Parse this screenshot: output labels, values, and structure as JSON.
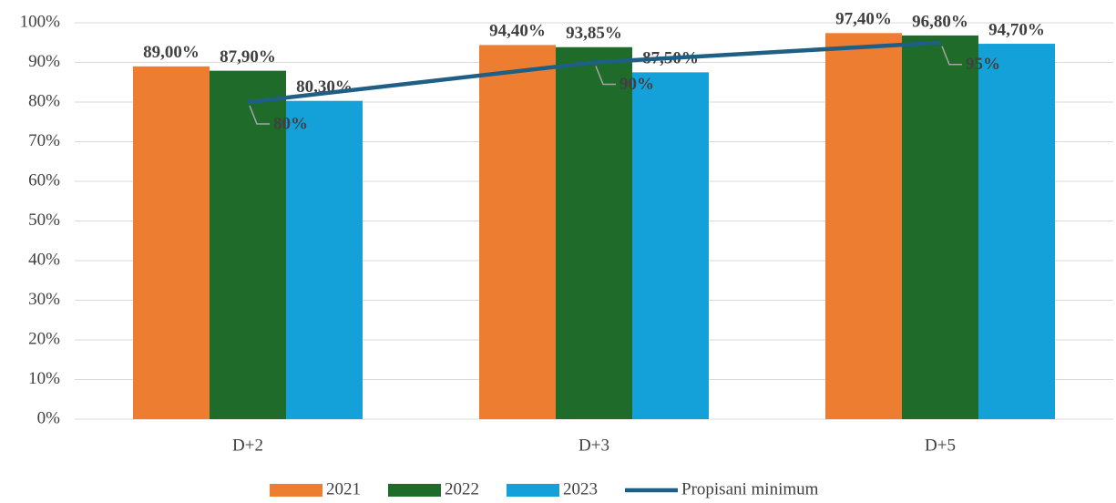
{
  "chart_data": {
    "type": "bar",
    "categories": [
      "D+2",
      "D+3",
      "D+5"
    ],
    "series": [
      {
        "name": "2021",
        "color": "#ed7d31",
        "label_color": "#c55a11",
        "values": [
          89.0,
          94.4,
          97.4
        ],
        "value_labels": [
          "89,00%",
          "94,40%",
          "97,40%"
        ]
      },
      {
        "name": "2022",
        "color": "#1e6b2a",
        "label_color": "#a6a6a6",
        "values": [
          87.9,
          93.85,
          96.8
        ],
        "value_labels": [
          "87,90%",
          "93,85%",
          "96,80%"
        ]
      },
      {
        "name": "2023",
        "color": "#14a0d9",
        "label_color": "#2e8bc0",
        "values": [
          80.3,
          87.5,
          94.7
        ],
        "value_labels": [
          "80,30%",
          "87,50%",
          "94,70%"
        ]
      },
      {
        "name": "Propisani minimum",
        "type": "line",
        "color": "#1f5f85",
        "label_color": "#1f4e79",
        "values": [
          80,
          90,
          95
        ],
        "value_labels": [
          "80%",
          "90%",
          "95%"
        ]
      }
    ],
    "ylim": [
      0,
      100
    ],
    "yticks": [
      {
        "value": 0,
        "label": "0%"
      },
      {
        "value": 10,
        "label": "10%"
      },
      {
        "value": 20,
        "label": "20%"
      },
      {
        "value": 30,
        "label": "30%"
      },
      {
        "value": 40,
        "label": "40%"
      },
      {
        "value": 50,
        "label": "50%"
      },
      {
        "value": 60,
        "label": "60%"
      },
      {
        "value": 70,
        "label": "70%"
      },
      {
        "value": 80,
        "label": "80%"
      },
      {
        "value": 90,
        "label": "90%"
      },
      {
        "value": 100,
        "label": "100%"
      }
    ],
    "grid": true,
    "legend": "bottom"
  }
}
